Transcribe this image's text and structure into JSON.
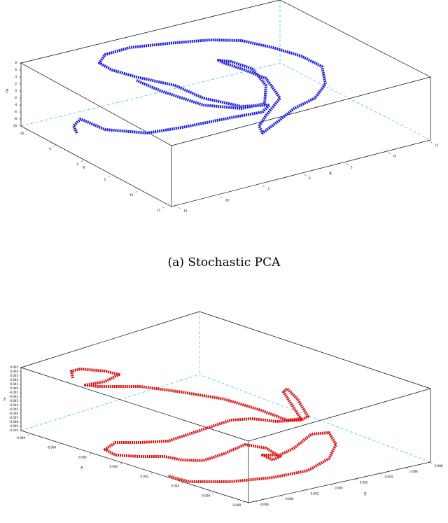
{
  "figure": {
    "panels": [
      {
        "caption": "(a) Stochastic PCA",
        "z_label": "Z",
        "y_label": "Y",
        "x_label": "X",
        "z_ticks": [
          "8",
          "6",
          "4",
          "2",
          "0",
          "-2",
          "-4",
          "-6",
          "-8",
          "-10"
        ],
        "y_ticks": [
          "-10",
          "-5",
          "0",
          "5",
          "10",
          "15"
        ],
        "x_ticks": [
          "15",
          "10",
          "5",
          "0",
          "-5",
          "-10",
          "-15"
        ]
      },
      {
        "z_label": "z",
        "y_label": "y",
        "x_label": "x",
        "z_ticks": [
          "0.005",
          "0.004",
          "0.003",
          "0.002",
          "0.001",
          "0.000",
          "-0.001",
          "-0.002",
          "-0.003",
          "-0.004",
          "-0.005",
          "-0.006",
          "-0.007",
          "-0.008",
          "-0.009",
          "-0.010"
        ],
        "x_ticks": [
          "-0.006",
          "-0.004",
          "-0.002",
          "0.000",
          "0.002",
          "0.004",
          "0.006",
          "0.008"
        ],
        "y_ticks": [
          "-0.006",
          "-0.004",
          "-0.002",
          "0.000",
          "0.002",
          "0.004",
          "0.006",
          "0.008"
        ]
      }
    ]
  }
}
